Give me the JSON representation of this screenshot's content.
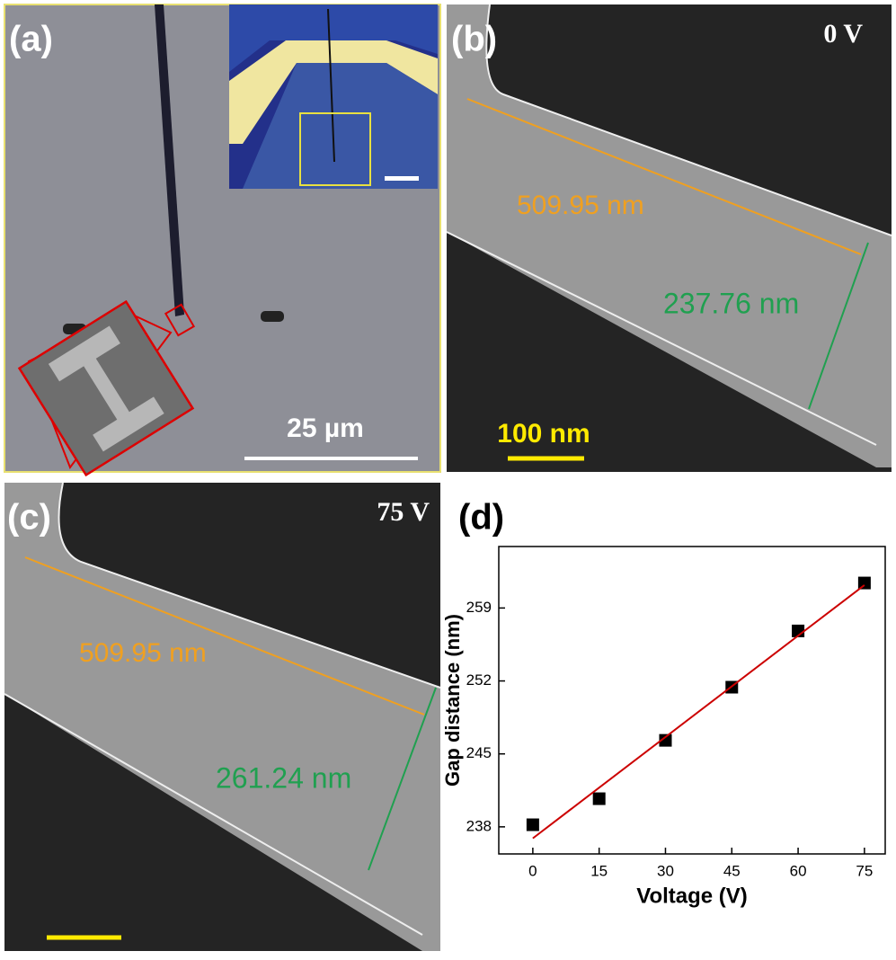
{
  "panels": {
    "a": {
      "label": "(a)",
      "scale_bar": "25 µm"
    },
    "b": {
      "label": "(b)",
      "voltage": "0 V",
      "length": "509.95 nm",
      "gap": "237.76 nm",
      "scale_bar": "100 nm"
    },
    "c": {
      "label": "(c)",
      "voltage": "75 V",
      "length": "509.95 nm",
      "gap": "261.24 nm"
    },
    "d": {
      "label": "(d)"
    }
  },
  "chart_data": {
    "type": "scatter",
    "x_label": "Voltage (V)",
    "y_label": "Gap distance (nm)",
    "x": [
      0,
      15,
      30,
      45,
      60,
      75
    ],
    "series": [
      {
        "color": "#000000",
        "marker": "square",
        "values": [
          238.2,
          240.7,
          246.3,
          251.4,
          256.8,
          261.4
        ]
      },
      {
        "color": "#cc0000",
        "marker": "line",
        "x": [
          0,
          75
        ],
        "values": [
          236.9,
          261.2
        ]
      }
    ],
    "xlim": [
      -7.7,
      79.7
    ],
    "xticks": [
      0,
      15,
      30,
      45,
      60,
      75
    ],
    "ylim": [
      235.4,
      264.9
    ],
    "yticks": [
      238,
      245,
      252,
      259
    ]
  }
}
